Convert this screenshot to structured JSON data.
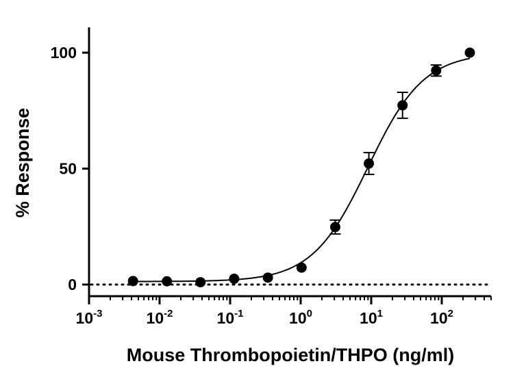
{
  "chart_data": {
    "type": "scatter",
    "title": "",
    "xlabel": "Mouse Thrombopoietin/THPO (ng/ml)",
    "ylabel": "% Response",
    "x_scale": "log",
    "xlim": [
      0.001,
      500
    ],
    "ylim": [
      -8,
      110
    ],
    "x_ticks": [
      {
        "value": 0.001,
        "base": "10",
        "exp": "-3"
      },
      {
        "value": 0.01,
        "base": "10",
        "exp": "-2"
      },
      {
        "value": 0.1,
        "base": "10",
        "exp": "-1"
      },
      {
        "value": 1,
        "base": "10",
        "exp": "0"
      },
      {
        "value": 10,
        "base": "10",
        "exp": "1"
      },
      {
        "value": 100,
        "base": "10",
        "exp": "2"
      }
    ],
    "y_ticks": [
      {
        "value": 0,
        "label": "0"
      },
      {
        "value": 50,
        "label": "50"
      },
      {
        "value": 100,
        "label": "100"
      }
    ],
    "grid": false,
    "reference_line": {
      "y": 0,
      "style": "dotted"
    },
    "series": [
      {
        "x": [
          0.0042,
          0.0127,
          0.038,
          0.114,
          0.343,
          1.03,
          3.09,
          9.26,
          27.8,
          83.3,
          250
        ],
        "y": [
          1.5,
          1.4,
          1.0,
          2.5,
          3.0,
          7.3,
          24.8,
          52.2,
          77.3,
          92.3,
          100
        ],
        "error": [
          0,
          0,
          0,
          0,
          0,
          0,
          3.0,
          4.7,
          5.6,
          2.4,
          0
        ],
        "color": "#000000"
      }
    ],
    "fit": {
      "model": "4PL",
      "bottom": 1.3,
      "top": 100,
      "ec50": 9.0,
      "hill": 1.1,
      "color": "#000000"
    }
  }
}
